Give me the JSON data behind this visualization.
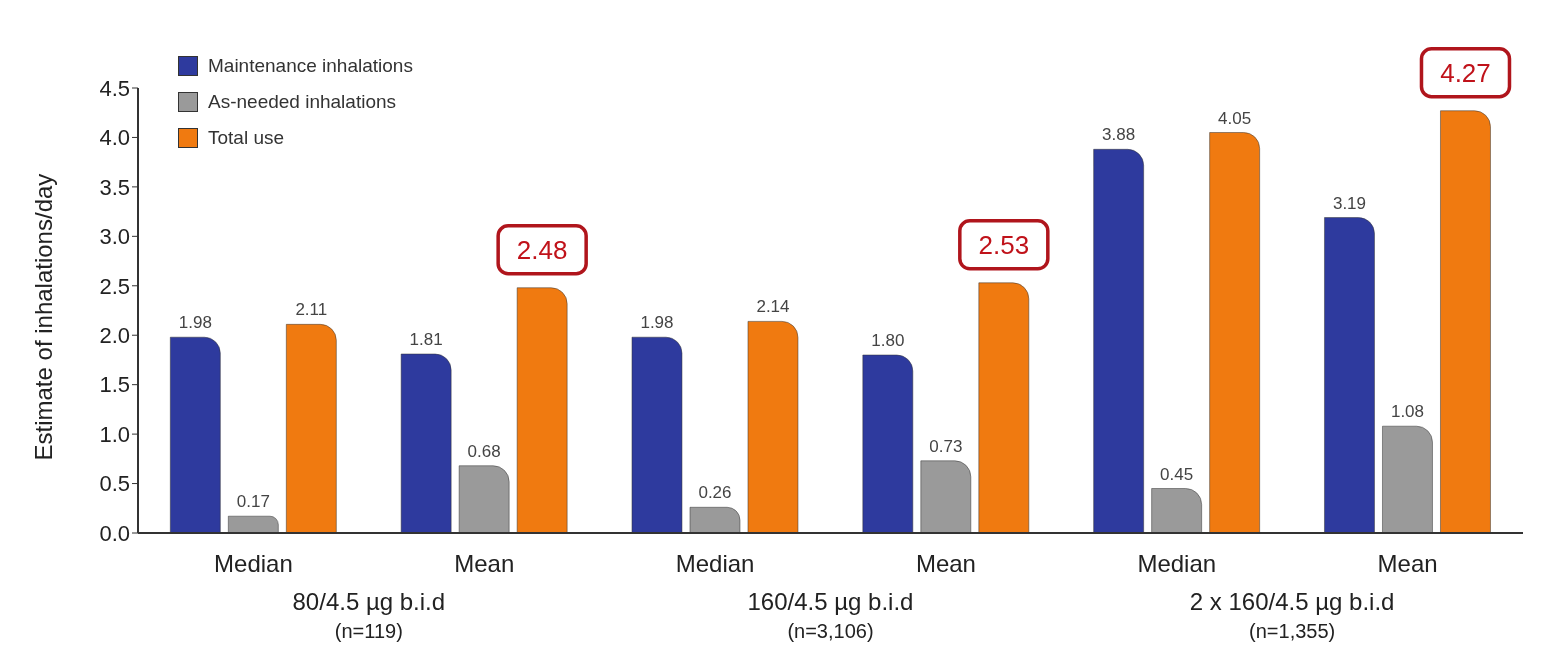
{
  "chart_data": {
    "type": "bar",
    "categories": [
      "Median",
      "Mean",
      "Median",
      "Mean",
      "Median",
      "Mean"
    ],
    "series": [
      {
        "name": "Maintenance inhalations",
        "color": "#2e3a9e",
        "values": [
          1.98,
          1.81,
          1.98,
          1.8,
          3.88,
          3.19
        ],
        "value_labels": [
          "1.98",
          "1.81",
          "1.98",
          "1.80",
          "3.88",
          "3.19"
        ]
      },
      {
        "name": "As-needed inhalations",
        "color": "#9a9a9a",
        "values": [
          0.17,
          0.68,
          0.26,
          0.73,
          0.45,
          1.08
        ],
        "value_labels": [
          "0.17",
          "0.68",
          "0.26",
          "0.73",
          "0.45",
          "1.08"
        ]
      },
      {
        "name": "Total use",
        "color": "#f07a10",
        "values": [
          2.11,
          2.48,
          2.14,
          2.53,
          4.05,
          4.27
        ],
        "value_labels": [
          "2.11",
          "2.48",
          "2.14",
          "2.53",
          "4.05",
          "4.27"
        ]
      }
    ],
    "ylabel": "Estimate of inhalations/day",
    "ylim": [
      0,
      4.5
    ],
    "yticks": [
      {
        "value": 0,
        "label": "0.0"
      },
      {
        "value": 0.5,
        "label": "0.5"
      },
      {
        "value": 1,
        "label": "1.0"
      },
      {
        "value": 1.5,
        "label": "1.5"
      },
      {
        "value": 2,
        "label": "2.0"
      },
      {
        "value": 2.5,
        "label": "2.5"
      },
      {
        "value": 3,
        "label": "3.0"
      },
      {
        "value": 3.5,
        "label": "3.5"
      },
      {
        "value": 4,
        "label": "4.0"
      },
      {
        "value": 4.5,
        "label": "4.5"
      }
    ],
    "annotations": [
      "80/4.5 µg b.i.d",
      "(n=119)",
      "160/4.5 µg b.i.d",
      "(n=3,106)",
      "2 x 160/4.5 µg b.i.d",
      "(n=1,355)"
    ],
    "legend": "top left",
    "grid": false
  }
}
